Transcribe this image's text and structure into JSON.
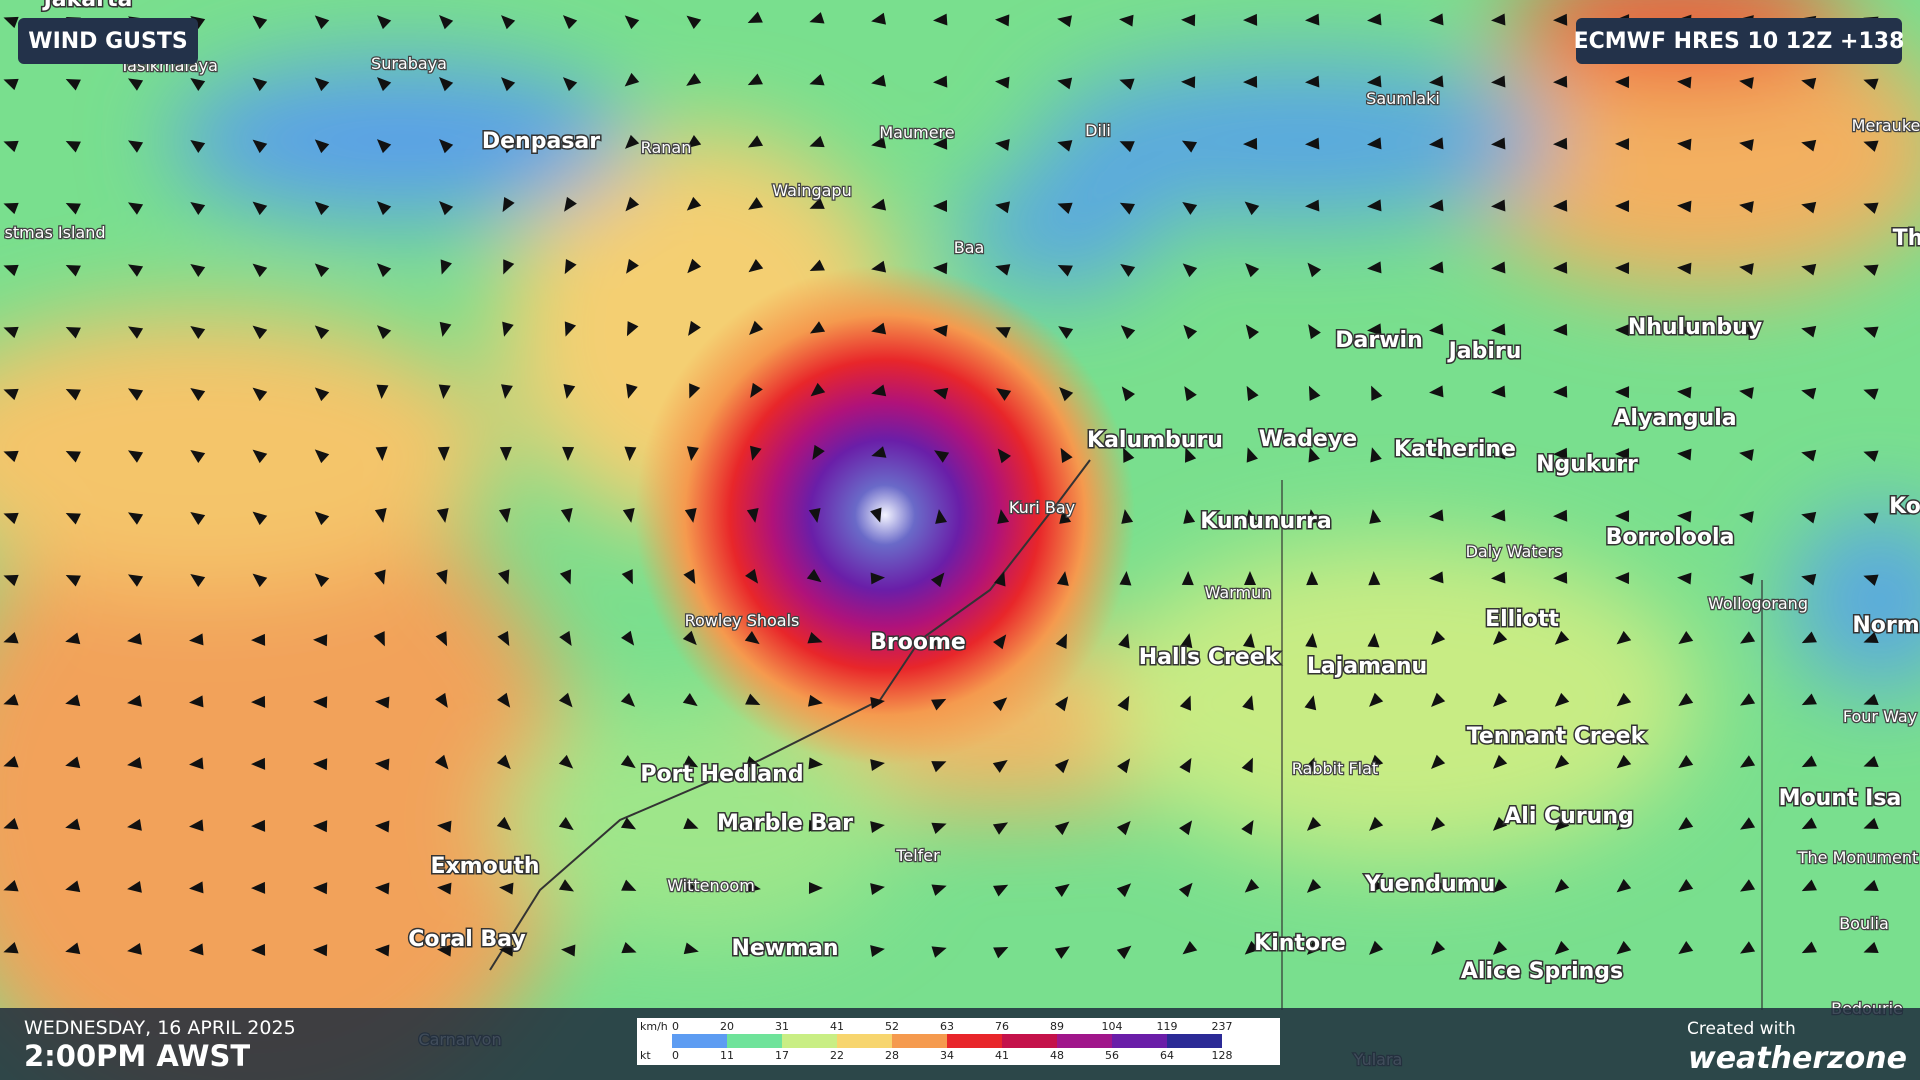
{
  "header": {
    "layer": "WIND GUSTS",
    "model": "ECMWF HRES 10 12Z +138"
  },
  "footer": {
    "date": "WEDNESDAY, 16 APRIL 2025",
    "time": "2:00PM AWST",
    "credit": "Created with",
    "brand": "weatherzone"
  },
  "legend": {
    "unit_kmh": "km/h",
    "unit_kt": "kt",
    "kmh": [
      0,
      20,
      31,
      41,
      52,
      63,
      76,
      89,
      104,
      119,
      237
    ],
    "kt": [
      0,
      11,
      17,
      22,
      28,
      34,
      41,
      48,
      56,
      64,
      128
    ],
    "colors": [
      "#5d9cf2",
      "#6fe39a",
      "#c9ee84",
      "#f7d56e",
      "#f59a4e",
      "#e8262a",
      "#c4124a",
      "#a0168a",
      "#6a1ea8",
      "#2b2a96"
    ]
  },
  "places": [
    "Jakarta",
    "Tasikmalaya",
    "Surabaya",
    "Denpasar",
    "Ranan",
    "Maumere",
    "Dili",
    "Saumlaki",
    "Merauke",
    "Waingapu",
    "Baa",
    "stmas Island",
    "Darwin",
    "Jabiru",
    "Nhulunbuy",
    "Alyangula",
    "Kalumburu",
    "Wadeye",
    "Katherine",
    "Ngukurr",
    "Kuri Bay",
    "Kununurra",
    "Borroloola",
    "Daly Waters",
    "Warmun",
    "Wollogorang",
    "Rowley Shoals",
    "Elliott",
    "Broome",
    "Halls Creek",
    "Lajamanu",
    "Norm",
    "Tennant Creek",
    "Four Way",
    "Rabbit Flat",
    "Port Hedland",
    "Mount Isa",
    "Marble Bar",
    "Ali Curung",
    "Telfer",
    "The Monument",
    "Exmouth",
    "Wittenoom",
    "Yuendumu",
    "Boulia",
    "Coral Bay",
    "Newman",
    "Kintore",
    "Alice Springs",
    "Bedourie",
    "Carnarvon",
    "Yulara",
    "Ko",
    "Th"
  ]
}
